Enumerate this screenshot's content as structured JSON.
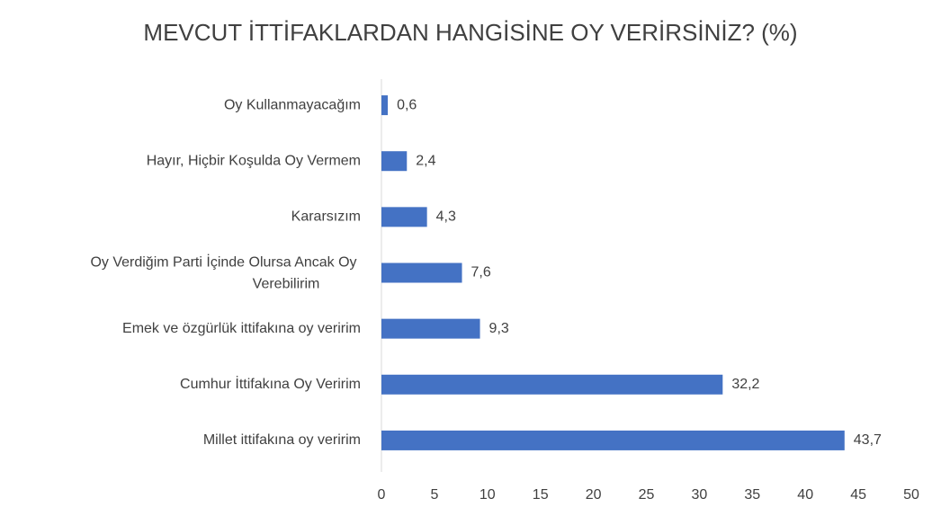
{
  "chart_data": {
    "type": "hbar",
    "title": "MEVCUT İTTİFAKLARDAN HANGİSİNE OY VERİRSİNİZ? (%)",
    "categories": [
      "Oy Kullanmayacağım",
      "Hayır, Hiçbir Koşulda Oy Vermem",
      "Kararsızım",
      "Oy Verdiğim Parti İçinde Olursa Ancak Oy Verebilirim",
      "Emek ve özgürlük ittifakına oy veririm",
      "Cumhur İttifakına Oy Veririm",
      "Millet ittifakına oy veririm"
    ],
    "values": [
      0.6,
      2.4,
      4.3,
      7.6,
      9.3,
      32.2,
      43.7
    ],
    "value_labels": [
      "0,6",
      "2,4",
      "4,3",
      "7,6",
      "9,3",
      "32,2",
      "43,7"
    ],
    "color": "#4472c4",
    "xlim": [
      0,
      50
    ],
    "xticks": [
      0,
      5,
      10,
      15,
      20,
      25,
      30,
      35,
      40,
      45,
      50
    ],
    "grid": false
  }
}
